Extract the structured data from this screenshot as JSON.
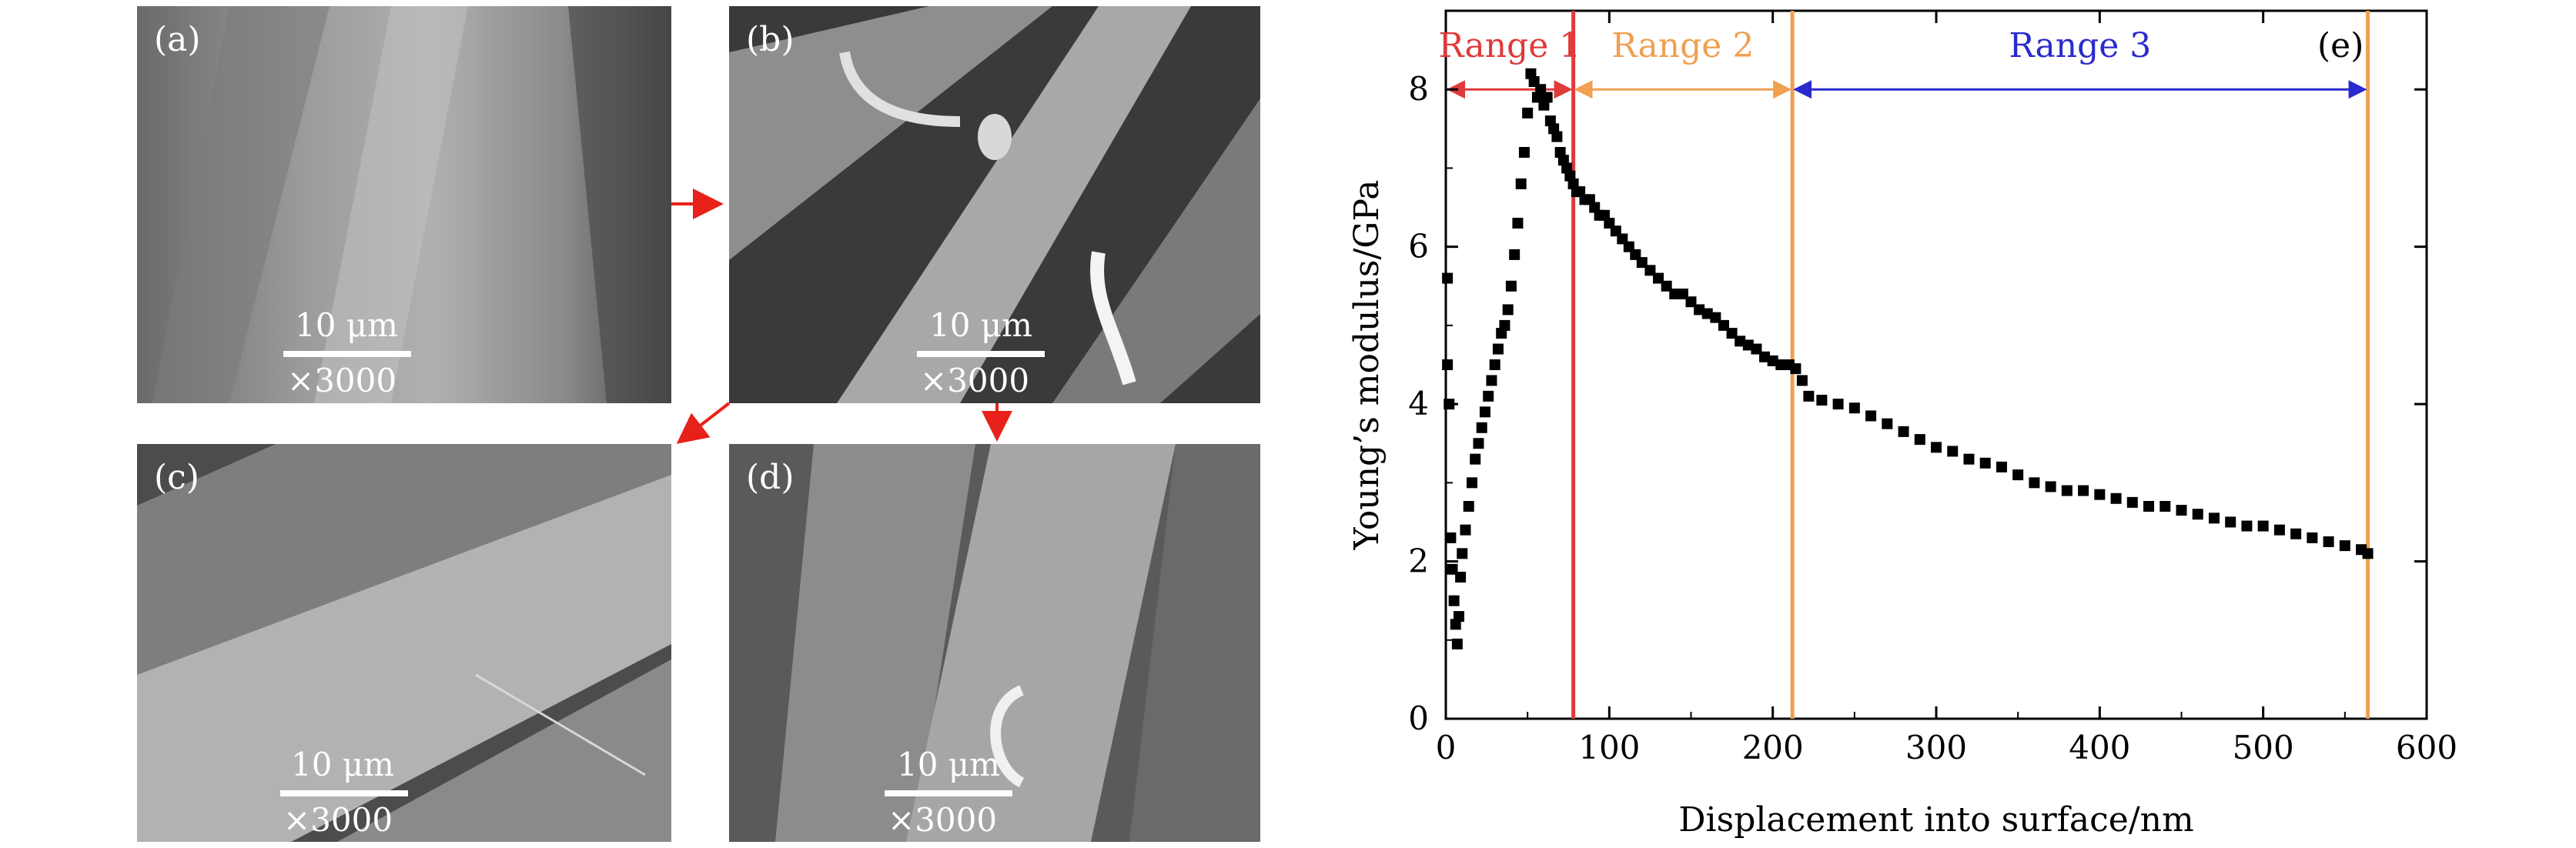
{
  "panels": [
    {
      "label": "(a)",
      "scale_length": "10 μm",
      "magnification": "×3000"
    },
    {
      "label": "(b)",
      "scale_length": "10 μm",
      "magnification": "×3000"
    },
    {
      "label": "(c)",
      "scale_length": "10 μm",
      "magnification": "×3000"
    },
    {
      "label": "(d)",
      "scale_length": "10 μm",
      "magnification": "×3000"
    }
  ],
  "colors": {
    "arrow": "#e8201a",
    "range1": "#e03a3a",
    "range2": "#f0a050",
    "range3": "#2a2ad0"
  },
  "chart_data": {
    "type": "scatter",
    "panel_label": "(e)",
    "title": "",
    "xlabel": "Displacement into surface/nm",
    "ylabel": "Young’s modulus/GPa",
    "xlim": [
      0,
      600
    ],
    "ylim": [
      0,
      9
    ],
    "xticks": [
      0,
      100,
      200,
      300,
      400,
      500,
      600
    ],
    "yticks": [
      0,
      2,
      4,
      6,
      8
    ],
    "grid": false,
    "ranges": [
      {
        "label": "Range 1",
        "from": 0,
        "to": 78,
        "color": "#e03a3a"
      },
      {
        "label": "Range 2",
        "from": 78,
        "to": 212,
        "color": "#f0a050"
      },
      {
        "label": "Range 3",
        "from": 212,
        "to": 564,
        "color": "#2a2ad0"
      }
    ],
    "range_arrow_y": 8.0,
    "boundaries": [
      {
        "x": 78,
        "color": "#e03a3a"
      },
      {
        "x": 212,
        "color": "#f0a050"
      },
      {
        "x": 564,
        "color": "#f0a050"
      }
    ],
    "series": [
      {
        "color": "#000000",
        "points": [
          [
            1,
            5.6
          ],
          [
            1,
            4.5
          ],
          [
            2,
            4.0
          ],
          [
            3,
            2.3
          ],
          [
            4,
            1.9
          ],
          [
            5,
            1.5
          ],
          [
            6,
            1.2
          ],
          [
            7,
            0.95
          ],
          [
            8,
            1.3
          ],
          [
            9,
            1.8
          ],
          [
            10,
            2.1
          ],
          [
            12,
            2.4
          ],
          [
            14,
            2.7
          ],
          [
            16,
            3.0
          ],
          [
            18,
            3.3
          ],
          [
            20,
            3.5
          ],
          [
            22,
            3.7
          ],
          [
            24,
            3.9
          ],
          [
            26,
            4.1
          ],
          [
            28,
            4.3
          ],
          [
            30,
            4.5
          ],
          [
            32,
            4.7
          ],
          [
            34,
            4.9
          ],
          [
            36,
            5.0
          ],
          [
            38,
            5.2
          ],
          [
            40,
            5.5
          ],
          [
            42,
            5.9
          ],
          [
            44,
            6.3
          ],
          [
            46,
            6.8
          ],
          [
            48,
            7.2
          ],
          [
            50,
            7.7
          ],
          [
            52,
            8.2
          ],
          [
            54,
            8.1
          ],
          [
            56,
            7.9
          ],
          [
            58,
            8.0
          ],
          [
            60,
            7.8
          ],
          [
            62,
            7.9
          ],
          [
            64,
            7.6
          ],
          [
            66,
            7.5
          ],
          [
            68,
            7.4
          ],
          [
            70,
            7.2
          ],
          [
            72,
            7.1
          ],
          [
            74,
            7.0
          ],
          [
            76,
            6.9
          ],
          [
            78,
            6.8
          ],
          [
            80,
            6.7
          ],
          [
            82,
            6.7
          ],
          [
            85,
            6.6
          ],
          [
            88,
            6.6
          ],
          [
            91,
            6.5
          ],
          [
            94,
            6.4
          ],
          [
            97,
            6.4
          ],
          [
            100,
            6.3
          ],
          [
            104,
            6.2
          ],
          [
            108,
            6.1
          ],
          [
            112,
            6.0
          ],
          [
            116,
            5.9
          ],
          [
            120,
            5.8
          ],
          [
            125,
            5.7
          ],
          [
            130,
            5.6
          ],
          [
            135,
            5.5
          ],
          [
            140,
            5.4
          ],
          [
            145,
            5.4
          ],
          [
            150,
            5.3
          ],
          [
            155,
            5.2
          ],
          [
            160,
            5.15
          ],
          [
            165,
            5.1
          ],
          [
            170,
            5.0
          ],
          [
            175,
            4.9
          ],
          [
            180,
            4.8
          ],
          [
            185,
            4.75
          ],
          [
            190,
            4.7
          ],
          [
            195,
            4.6
          ],
          [
            200,
            4.55
          ],
          [
            205,
            4.5
          ],
          [
            210,
            4.5
          ],
          [
            214,
            4.45
          ],
          [
            218,
            4.3
          ],
          [
            222,
            4.1
          ],
          [
            230,
            4.05
          ],
          [
            240,
            4.0
          ],
          [
            250,
            3.95
          ],
          [
            260,
            3.85
          ],
          [
            270,
            3.75
          ],
          [
            280,
            3.65
          ],
          [
            290,
            3.55
          ],
          [
            300,
            3.45
          ],
          [
            310,
            3.4
          ],
          [
            320,
            3.3
          ],
          [
            330,
            3.25
          ],
          [
            340,
            3.2
          ],
          [
            350,
            3.1
          ],
          [
            360,
            3.0
          ],
          [
            370,
            2.95
          ],
          [
            380,
            2.9
          ],
          [
            390,
            2.9
          ],
          [
            400,
            2.85
          ],
          [
            410,
            2.8
          ],
          [
            420,
            2.75
          ],
          [
            430,
            2.7
          ],
          [
            440,
            2.7
          ],
          [
            450,
            2.65
          ],
          [
            460,
            2.6
          ],
          [
            470,
            2.55
          ],
          [
            480,
            2.5
          ],
          [
            490,
            2.45
          ],
          [
            500,
            2.45
          ],
          [
            510,
            2.4
          ],
          [
            520,
            2.35
          ],
          [
            530,
            2.3
          ],
          [
            540,
            2.25
          ],
          [
            550,
            2.2
          ],
          [
            560,
            2.15
          ],
          [
            564,
            2.1
          ]
        ]
      }
    ]
  }
}
